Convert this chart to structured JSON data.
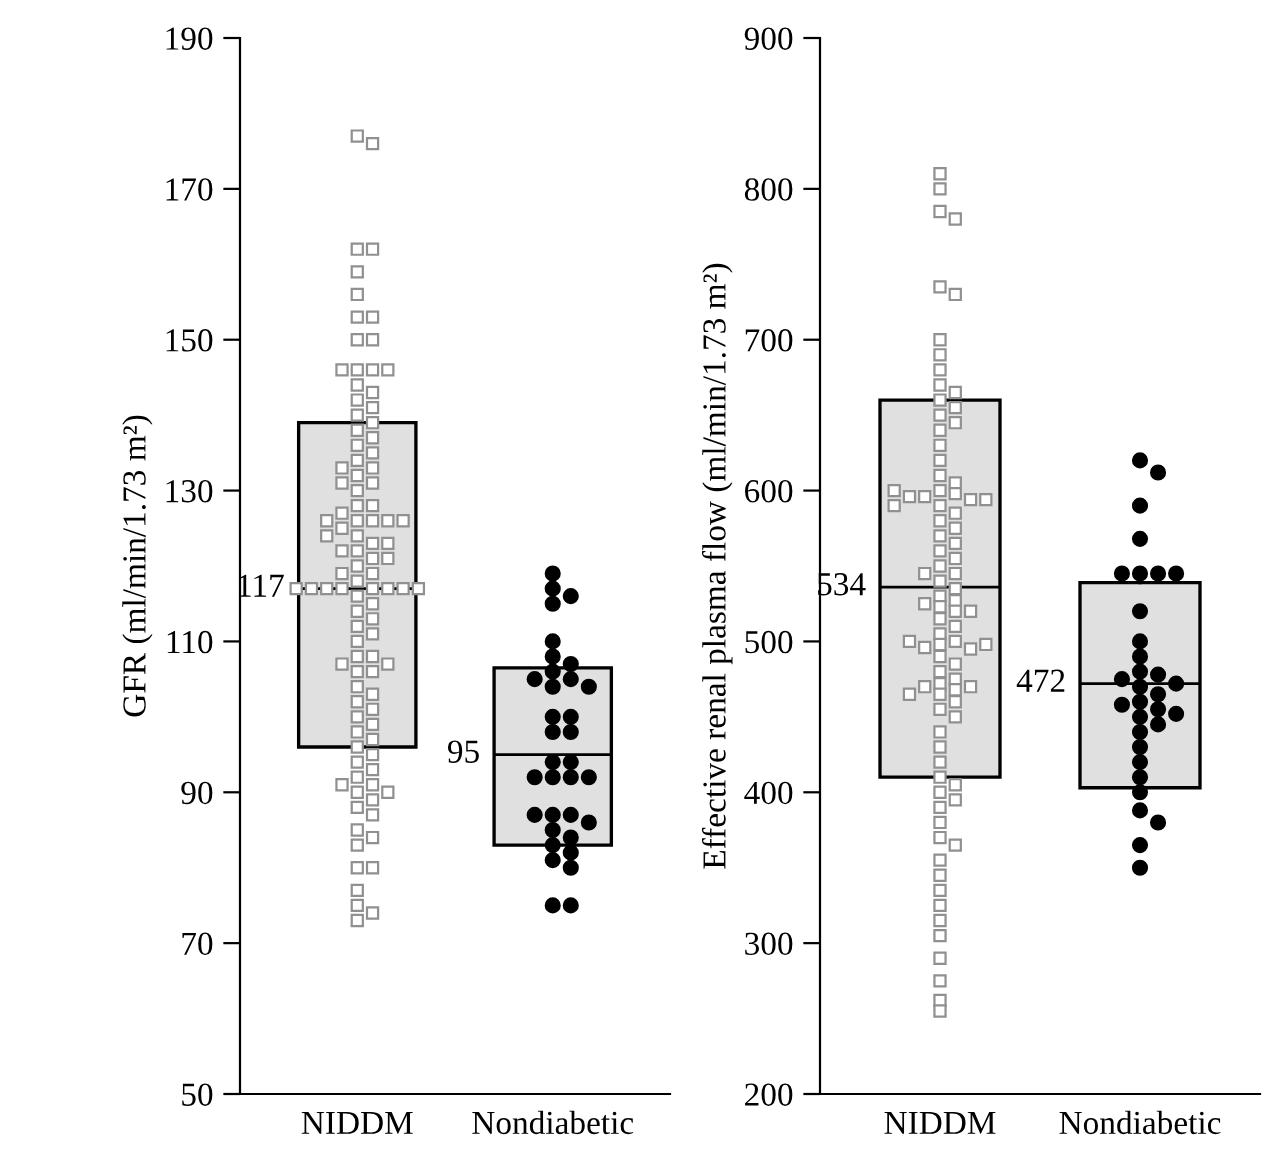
{
  "chart_data": [
    {
      "type": "box",
      "ylabel": "GFR (ml/min/1.73 m²)",
      "categories": [
        "NIDDM",
        "Nondiabetic"
      ],
      "ylim": [
        50,
        190
      ],
      "yticks": [
        50,
        70,
        90,
        110,
        130,
        150,
        170,
        190
      ],
      "color": "#e0e0e0",
      "boxes": [
        {
          "low": 96,
          "q1": 96,
          "median": 117,
          "q3": 139,
          "high": 139
        },
        {
          "low": 83,
          "q1": 83,
          "median": 95,
          "q3": 106.5,
          "high": 106.5
        }
      ],
      "annotations": [
        {
          "text": "117",
          "x": "NIDDM",
          "y": 117
        },
        {
          "text": "95",
          "x": "Nondiabetic",
          "y": 95
        }
      ],
      "series": [
        {
          "type": "scatter",
          "marker": "square",
          "color": "#909090",
          "x": [
            "NIDDM",
            "NIDDM",
            "NIDDM",
            "NIDDM",
            "NIDDM",
            "NIDDM",
            "NIDDM",
            "NIDDM",
            "NIDDM",
            "NIDDM",
            "NIDDM",
            "NIDDM",
            "NIDDM",
            "NIDDM",
            "NIDDM",
            "NIDDM",
            "NIDDM",
            "NIDDM",
            "NIDDM",
            "NIDDM",
            "NIDDM",
            "NIDDM",
            "NIDDM",
            "NIDDM",
            "NIDDM",
            "NIDDM",
            "NIDDM",
            "NIDDM",
            "NIDDM",
            "NIDDM",
            "NIDDM",
            "NIDDM",
            "NIDDM",
            "NIDDM",
            "NIDDM",
            "NIDDM",
            "NIDDM",
            "NIDDM",
            "NIDDM",
            "NIDDM",
            "NIDDM",
            "NIDDM",
            "NIDDM",
            "NIDDM",
            "NIDDM",
            "NIDDM",
            "NIDDM",
            "NIDDM",
            "NIDDM",
            "NIDDM",
            "NIDDM",
            "NIDDM",
            "NIDDM",
            "NIDDM",
            "NIDDM",
            "NIDDM",
            "NIDDM",
            "NIDDM",
            "NIDDM",
            "NIDDM",
            "NIDDM",
            "NIDDM",
            "NIDDM",
            "NIDDM",
            "NIDDM",
            "NIDDM",
            "NIDDM",
            "NIDDM",
            "NIDDM",
            "NIDDM",
            "NIDDM",
            "NIDDM",
            "NIDDM",
            "NIDDM",
            "NIDDM",
            "NIDDM",
            "NIDDM",
            "NIDDM",
            "NIDDM",
            "NIDDM",
            "NIDDM",
            "NIDDM",
            "NIDDM",
            "NIDDM",
            "NIDDM",
            "NIDDM",
            "NIDDM",
            "NIDDM",
            "NIDDM",
            "NIDDM",
            "NIDDM",
            "NIDDM",
            "NIDDM",
            "NIDDM",
            "NIDDM",
            "NIDDM",
            "NIDDM",
            "NIDDM",
            "NIDDM",
            "NIDDM",
            "NIDDM",
            "NIDDM"
          ],
          "values": [
            177,
            176,
            162,
            162,
            159,
            156,
            153,
            153,
            150,
            150,
            146,
            146,
            146,
            146,
            144,
            143,
            142,
            141,
            140,
            139,
            138,
            137,
            136,
            135,
            134,
            133,
            132,
            131,
            130,
            128,
            128,
            127,
            126,
            126,
            126,
            126,
            126,
            125,
            124,
            123,
            122,
            121,
            120,
            119,
            118,
            117,
            117,
            117,
            117,
            117,
            117,
            117,
            117,
            116,
            115,
            114,
            113,
            112,
            111,
            110,
            108,
            108,
            107,
            107,
            106,
            106,
            104,
            103,
            102,
            101,
            100,
            99,
            98,
            97,
            96,
            95,
            94,
            93,
            92,
            91,
            91,
            90,
            90,
            89,
            88,
            87,
            85,
            84,
            83,
            80,
            80,
            77,
            75,
            74,
            73,
            122,
            123,
            119,
            124,
            121,
            131,
            133
          ]
        },
        {
          "type": "scatter",
          "marker": "circle",
          "color": "#000000",
          "x": [
            "Nondiabetic",
            "Nondiabetic",
            "Nondiabetic",
            "Nondiabetic",
            "Nondiabetic",
            "Nondiabetic",
            "Nondiabetic",
            "Nondiabetic",
            "Nondiabetic",
            "Nondiabetic",
            "Nondiabetic",
            "Nondiabetic",
            "Nondiabetic",
            "Nondiabetic",
            "Nondiabetic",
            "Nondiabetic",
            "Nondiabetic",
            "Nondiabetic",
            "Nondiabetic",
            "Nondiabetic",
            "Nondiabetic",
            "Nondiabetic",
            "Nondiabetic",
            "Nondiabetic",
            "Nondiabetic",
            "Nondiabetic",
            "Nondiabetic",
            "Nondiabetic",
            "Nondiabetic",
            "Nondiabetic",
            "Nondiabetic",
            "Nondiabetic",
            "Nondiabetic",
            "Nondiabetic"
          ],
          "values": [
            119,
            117,
            116,
            115,
            110,
            108,
            107,
            106,
            105,
            105,
            104,
            104,
            100,
            100,
            98,
            98,
            94,
            94,
            92,
            92,
            92,
            92,
            87,
            87,
            87,
            86,
            85,
            84,
            83,
            82,
            81,
            80,
            75,
            75
          ]
        }
      ]
    },
    {
      "type": "box",
      "ylabel": "Effective renal plasma flow (ml/min/1.73 m²)",
      "categories": [
        "NIDDM",
        "Nondiabetic"
      ],
      "ylim": [
        200,
        900
      ],
      "yticks": [
        200,
        300,
        400,
        500,
        600,
        700,
        800,
        900
      ],
      "color": "#e0e0e0",
      "boxes": [
        {
          "low": 410,
          "q1": 410,
          "median": 536,
          "q3": 660,
          "high": 660
        },
        {
          "low": 403,
          "q1": 403,
          "median": 472,
          "q3": 539,
          "high": 539
        }
      ],
      "annotations": [
        {
          "text": "534",
          "x": "NIDDM",
          "y": 536
        },
        {
          "text": "472",
          "x": "Nondiabetic",
          "y": 472
        }
      ],
      "series": [
        {
          "type": "scatter",
          "marker": "square",
          "color": "#909090",
          "x": [
            "NIDDM",
            "NIDDM",
            "NIDDM",
            "NIDDM",
            "NIDDM",
            "NIDDM",
            "NIDDM",
            "NIDDM",
            "NIDDM",
            "NIDDM",
            "NIDDM",
            "NIDDM",
            "NIDDM",
            "NIDDM",
            "NIDDM",
            "NIDDM",
            "NIDDM",
            "NIDDM",
            "NIDDM",
            "NIDDM",
            "NIDDM",
            "NIDDM",
            "NIDDM",
            "NIDDM",
            "NIDDM",
            "NIDDM",
            "NIDDM",
            "NIDDM",
            "NIDDM",
            "NIDDM",
            "NIDDM",
            "NIDDM",
            "NIDDM",
            "NIDDM",
            "NIDDM",
            "NIDDM",
            "NIDDM",
            "NIDDM",
            "NIDDM",
            "NIDDM",
            "NIDDM",
            "NIDDM",
            "NIDDM",
            "NIDDM",
            "NIDDM",
            "NIDDM",
            "NIDDM",
            "NIDDM",
            "NIDDM",
            "NIDDM",
            "NIDDM",
            "NIDDM",
            "NIDDM",
            "NIDDM",
            "NIDDM",
            "NIDDM",
            "NIDDM",
            "NIDDM",
            "NIDDM",
            "NIDDM",
            "NIDDM",
            "NIDDM",
            "NIDDM",
            "NIDDM",
            "NIDDM",
            "NIDDM",
            "NIDDM",
            "NIDDM",
            "NIDDM",
            "NIDDM",
            "NIDDM",
            "NIDDM",
            "NIDDM",
            "NIDDM",
            "NIDDM",
            "NIDDM",
            "NIDDM",
            "NIDDM",
            "NIDDM",
            "NIDDM",
            "NIDDM",
            "NIDDM",
            "NIDDM",
            "NIDDM",
            "NIDDM",
            "NIDDM",
            "NIDDM",
            "NIDDM",
            "NIDDM",
            "NIDDM"
          ],
          "values": [
            810,
            800,
            785,
            780,
            735,
            730,
            700,
            690,
            680,
            670,
            665,
            660,
            655,
            650,
            645,
            640,
            630,
            620,
            610,
            605,
            600,
            598,
            596,
            594,
            590,
            585,
            580,
            575,
            570,
            565,
            560,
            555,
            550,
            545,
            540,
            535,
            530,
            527,
            525,
            523,
            520,
            515,
            510,
            505,
            500,
            498,
            496,
            495,
            490,
            485,
            480,
            475,
            472,
            470,
            468,
            465,
            460,
            455,
            450,
            440,
            430,
            420,
            410,
            405,
            400,
            395,
            390,
            380,
            370,
            365,
            355,
            345,
            335,
            325,
            315,
            305,
            290,
            275,
            262,
            255,
            596,
            594,
            545,
            520,
            500,
            498,
            470,
            465,
            600,
            590
          ]
        },
        {
          "type": "scatter",
          "marker": "circle",
          "color": "#000000",
          "x": [
            "Nondiabetic",
            "Nondiabetic",
            "Nondiabetic",
            "Nondiabetic",
            "Nondiabetic",
            "Nondiabetic",
            "Nondiabetic",
            "Nondiabetic",
            "Nondiabetic",
            "Nondiabetic",
            "Nondiabetic",
            "Nondiabetic",
            "Nondiabetic",
            "Nondiabetic",
            "Nondiabetic",
            "Nondiabetic",
            "Nondiabetic",
            "Nondiabetic",
            "Nondiabetic",
            "Nondiabetic",
            "Nondiabetic",
            "Nondiabetic",
            "Nondiabetic",
            "Nondiabetic",
            "Nondiabetic",
            "Nondiabetic",
            "Nondiabetic",
            "Nondiabetic",
            "Nondiabetic",
            "Nondiabetic",
            "Nondiabetic",
            "Nondiabetic"
          ],
          "values": [
            620,
            612,
            590,
            568,
            545,
            545,
            545,
            545,
            520,
            500,
            490,
            480,
            478,
            475,
            472,
            470,
            465,
            460,
            458,
            455,
            452,
            450,
            445,
            440,
            430,
            420,
            410,
            400,
            388,
            380,
            365,
            350
          ]
        }
      ]
    }
  ]
}
